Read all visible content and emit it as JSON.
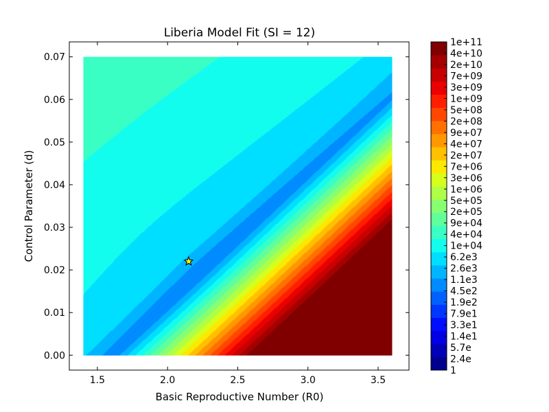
{
  "chart_data": {
    "type": "contour",
    "title": "Liberia Model Fit (SI = 12)",
    "xlabel": "Basic Reproductive Number (R0)",
    "ylabel": "Control Parameter (d)",
    "xlim": [
      1.3,
      3.72
    ],
    "ylim": [
      -0.0035,
      0.0735
    ],
    "data_extent": {
      "x": [
        1.4,
        3.6
      ],
      "y": [
        0.0,
        0.07
      ]
    },
    "x_ticks": [
      1.5,
      2.0,
      2.5,
      3.0,
      3.5
    ],
    "x_tick_labels": [
      "1.5",
      "2.0",
      "2.5",
      "3.0",
      "3.5"
    ],
    "y_ticks": [
      0.0,
      0.01,
      0.02,
      0.03,
      0.04,
      0.05,
      0.06,
      0.07
    ],
    "y_tick_labels": [
      "0.00",
      "0.01",
      "0.02",
      "0.03",
      "0.04",
      "0.05",
      "0.06",
      "0.07"
    ],
    "grid": false,
    "best_fit": {
      "x": 2.15,
      "y": 0.022,
      "marker": "star",
      "color": "#ffff00"
    },
    "min_valley_ridge": [
      [
        1.66,
        0.0066
      ],
      [
        2.15,
        0.022
      ],
      [
        2.75,
        0.04
      ]
    ],
    "colorbar": {
      "scale": "log",
      "tick_labels": [
        "1",
        "2.4e",
        "5.7e",
        "1.4e1",
        "3.3e1",
        "7.9e1",
        "1.9e2",
        "4.5e2",
        "1.1e3",
        "2.6e3",
        "6.2e3",
        "1e+04",
        "4e+04",
        "9e+04",
        "2e+05",
        "5e+05",
        "1e+06",
        "3e+06",
        "7e+06",
        "2e+07",
        "4e+07",
        "9e+07",
        "2e+08",
        "5e+08",
        "1e+09",
        "3e+09",
        "7e+09",
        "2e+10",
        "4e+10",
        "1e+11"
      ],
      "colors": [
        "#00008f",
        "#0000b9",
        "#0000e3",
        "#000dff",
        "#0037ff",
        "#0061ff",
        "#008bff",
        "#00b5ff",
        "#00dfff",
        "#13fdef",
        "#3affc5",
        "#61ff9b",
        "#88ff71",
        "#afff47",
        "#d6ff1d",
        "#fde800",
        "#ffc000",
        "#ff9800",
        "#ff7000",
        "#ff4700",
        "#ff1f00",
        "#ea0000",
        "#c70000",
        "#a50000",
        "#800000"
      ]
    }
  }
}
